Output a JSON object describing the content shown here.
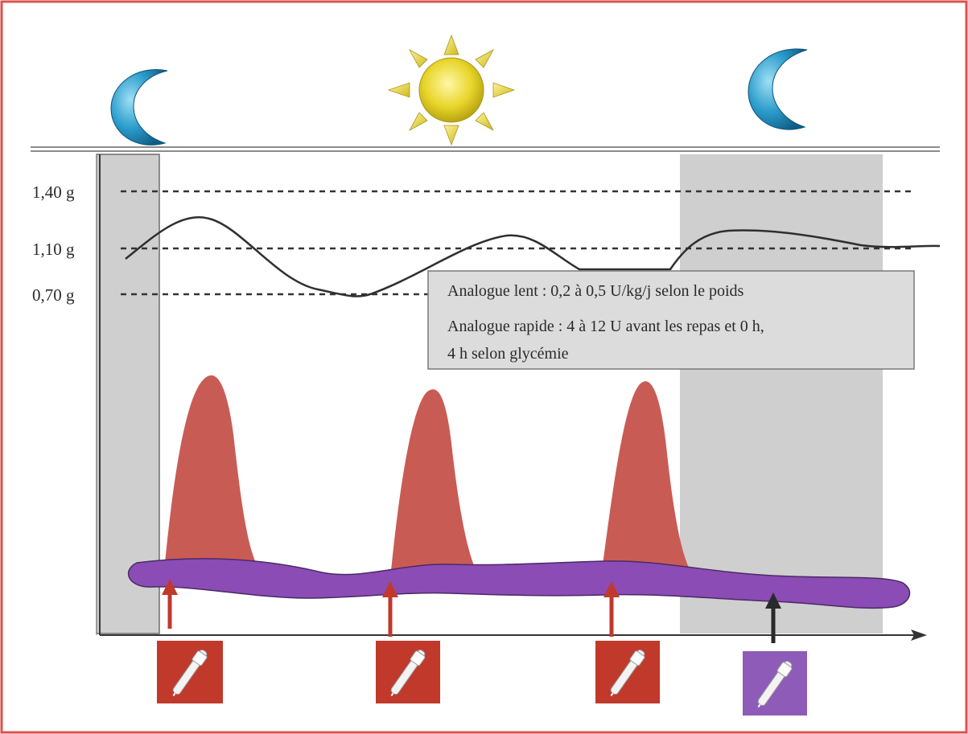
{
  "levels": [
    {
      "label": "1,40 g",
      "value": 1.4
    },
    {
      "label": "1,10 g",
      "value": 1.1
    },
    {
      "label": "0,70 g",
      "value": 0.7
    }
  ],
  "info_box": {
    "line1": "Analogue lent : 0,2 à 0,5 U/kg/j selon le poids",
    "line2": "Analogue rapide : 4 à 12 U avant les repas et 0 h,",
    "line3": "4 h selon glycémie"
  },
  "icons": {
    "night_left": "moon-icon",
    "day": "sun-icon",
    "night_right": "moon-icon",
    "rapid_injection": "insulin-pen-icon",
    "slow_injection": "insulin-pen-icon"
  },
  "colors": {
    "border": "#d9534f",
    "rapid_insulin": "#c95b55",
    "slow_insulin": "#8b4cb5",
    "rapid_pen_box": "#c0392b",
    "slow_pen_box": "#8e5bb8",
    "night_shade": "#cfcfcf",
    "glucose_curve": "#2f2f2f",
    "moon": "#2a8fbf",
    "sun": "#e8d230"
  }
}
